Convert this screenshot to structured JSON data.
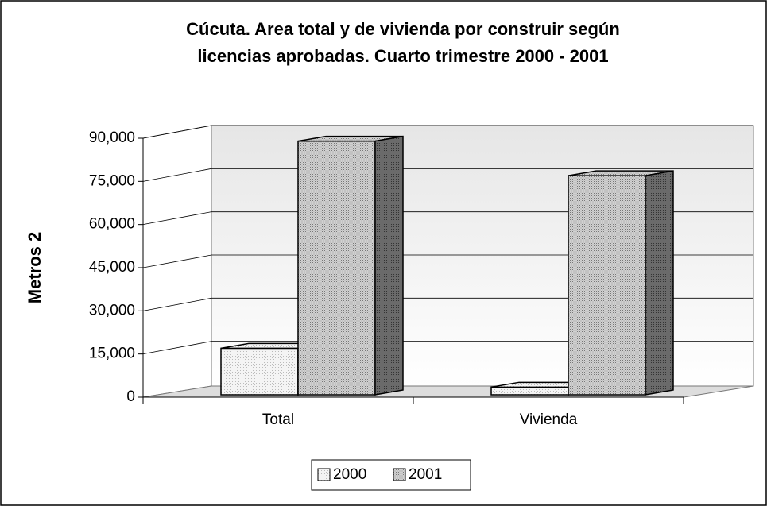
{
  "chart_data": {
    "type": "bar3d",
    "title": [
      "Cúcuta. Area total y de vivienda por construir según",
      "licencias aprobadas. Cuarto  trimestre 2000 - 2001"
    ],
    "y_label": "Metros 2",
    "categories": [
      "Total",
      "Vivienda"
    ],
    "series": [
      {
        "name": "2000",
        "color": "#f2f2f2",
        "values": [
          17000,
          3500
        ]
      },
      {
        "name": "2001",
        "color": "#c4c4c4",
        "values": [
          89000,
          77000
        ]
      }
    ],
    "ylim": [
      0,
      90000
    ],
    "yticks": [
      0,
      {
        "value": 15000,
        "label": "15,000"
      },
      {
        "value": 30000,
        "label": "30,000"
      },
      {
        "value": 45000,
        "label": "45,000"
      },
      {
        "value": 60000,
        "label": "60,000"
      },
      {
        "value": 75000,
        "label": "75,000"
      },
      {
        "value": 90000,
        "label": "90,000"
      }
    ],
    "grid": true,
    "legend": "bottom"
  }
}
